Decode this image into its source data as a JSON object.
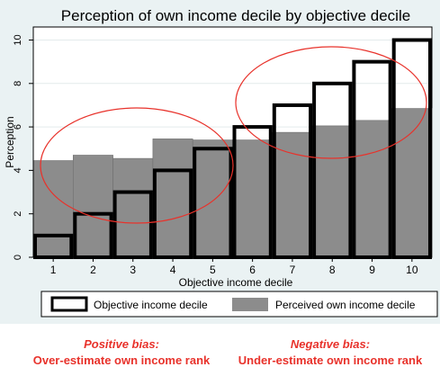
{
  "chart_data": {
    "type": "bar",
    "title": "Perception of own income decile by objective decile",
    "xlabel": "Objective income decile",
    "ylabel": "Perception",
    "categories": [
      "1",
      "2",
      "3",
      "4",
      "5",
      "6",
      "7",
      "8",
      "9",
      "10"
    ],
    "yticks": [
      "0",
      "2",
      "4",
      "6",
      "8",
      "10"
    ],
    "ylim": [
      0,
      10.6
    ],
    "series": [
      {
        "name": "Objective income decile",
        "values": [
          1,
          2,
          3,
          4,
          5,
          6,
          7,
          8,
          9,
          10
        ],
        "style": "outline",
        "color": "#000000"
      },
      {
        "name": "Perceived own income decile",
        "values": [
          4.45,
          4.7,
          4.55,
          5.45,
          5.4,
          5.4,
          5.75,
          6.05,
          6.3,
          6.85
        ],
        "style": "filled",
        "color": "#8c8c8c"
      }
    ],
    "grid": true,
    "legend_position": "bottom",
    "annotations": [
      "ellipse over deciles 1-5",
      "ellipse over deciles 6-10"
    ]
  },
  "captions": {
    "left_title": "Positive bias:",
    "left_sub": "Over-estimate own income rank",
    "right_title": "Negative bias:",
    "right_sub": "Under-estimate own income rank"
  },
  "colors": {
    "panel_background": "#eaf2f3",
    "plot_background": "#ffffff",
    "perceived_bar": "#8c8c8c",
    "annotation": "#e8322b"
  }
}
